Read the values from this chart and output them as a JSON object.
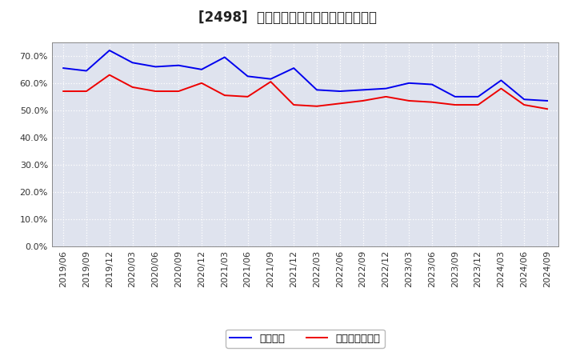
{
  "title": "[2498]  固定比率、固定長期適合率の推移",
  "blue_label": "固定比率",
  "red_label": "固定長期適合率",
  "x_labels": [
    "2019/06",
    "2019/09",
    "2019/12",
    "2020/03",
    "2020/06",
    "2020/09",
    "2020/12",
    "2021/03",
    "2021/06",
    "2021/09",
    "2021/12",
    "2022/03",
    "2022/06",
    "2022/09",
    "2022/12",
    "2023/03",
    "2023/06",
    "2023/09",
    "2023/12",
    "2024/03",
    "2024/06",
    "2024/09"
  ],
  "blue_values": [
    65.5,
    64.5,
    72.0,
    67.5,
    66.0,
    66.5,
    65.0,
    69.5,
    62.5,
    61.5,
    65.5,
    57.5,
    57.0,
    57.5,
    58.0,
    60.0,
    59.5,
    55.0,
    55.0,
    61.0,
    54.0,
    53.5
  ],
  "red_values": [
    57.0,
    57.0,
    63.0,
    58.5,
    57.0,
    57.0,
    60.0,
    55.5,
    55.0,
    60.5,
    52.0,
    51.5,
    52.5,
    53.5,
    55.0,
    53.5,
    53.0,
    52.0,
    52.0,
    58.0,
    52.0,
    50.5
  ],
  "ylim": [
    0,
    75
  ],
  "yticks": [
    0,
    10,
    20,
    30,
    40,
    50,
    60,
    70
  ],
  "background_color": "#ffffff",
  "plot_bg_color": "#dfe3ee",
  "grid_color": "#ffffff",
  "blue_color": "#0000ee",
  "red_color": "#ee0000",
  "title_fontsize": 12,
  "tick_fontsize": 8,
  "legend_fontsize": 9.5
}
